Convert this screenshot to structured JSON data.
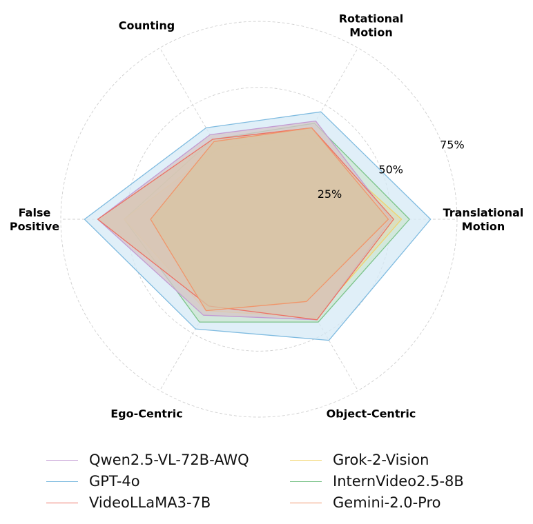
{
  "chart_data": {
    "type": "radar",
    "axes": [
      {
        "lines": [
          "Translational",
          "Motion"
        ]
      },
      {
        "lines": [
          "Rotational",
          "Motion"
        ]
      },
      {
        "lines": [
          "Counting"
        ]
      },
      {
        "lines": [
          "False",
          "Positive"
        ]
      },
      {
        "lines": [
          "Ego-Centric"
        ]
      },
      {
        "lines": [
          "Object-Centric"
        ]
      }
    ],
    "rmax": 75,
    "ticks": [
      25,
      50,
      75
    ],
    "tick_labels": [
      "25%",
      "50%",
      "75%"
    ],
    "series": [
      {
        "name": "GPT-4o",
        "color": "#7fbbe0",
        "values": [
          65,
          47,
          40,
          66,
          48,
          53
        ]
      },
      {
        "name": "InternVideo2.5-8B",
        "color": "#7cc48a",
        "values": [
          57,
          42,
          35,
          51,
          45,
          45
        ]
      },
      {
        "name": "Grok-2-Vision",
        "color": "#f2d36b",
        "values": [
          54,
          37,
          31,
          51,
          40,
          43
        ]
      },
      {
        "name": "Qwen2.5-VL-72B-AWQ",
        "color": "#c39bd3",
        "values": [
          50,
          43,
          37,
          61,
          42,
          44
        ]
      },
      {
        "name": "VideoLLaMA3-7B",
        "color": "#ec7063",
        "values": [
          51,
          40,
          35,
          61,
          38,
          44
        ]
      },
      {
        "name": "Gemini-2.0-Pro",
        "color": "#f0956a",
        "values": [
          49,
          40,
          34,
          41,
          40,
          36
        ]
      }
    ],
    "legend": [
      {
        "name": "Qwen2.5-VL-72B-AWQ",
        "color": "#c39bd3"
      },
      {
        "name": "GPT-4o",
        "color": "#7fbbe0"
      },
      {
        "name": "VideoLLaMA3-7B",
        "color": "#ec7063"
      },
      {
        "name": "Grok-2-Vision",
        "color": "#f2d36b"
      },
      {
        "name": "InternVideo2.5-8B",
        "color": "#7cc48a"
      },
      {
        "name": "Gemini-2.0-Pro",
        "color": "#f0956a"
      }
    ],
    "fill_colors": {
      "GPT-4o": "#d6e9f6",
      "InternVideo2.5-8B": "#cde6d3",
      "Grok-2-Vision": "#dcdcb8",
      "Qwen2.5-VL-72B-AWQ": "#d6c6c8",
      "VideoLLaMA3-7B": "#d9c5b2",
      "Gemini-2.0-Pro": "#d8c4a3"
    },
    "grid": true,
    "legend_position": "bottom"
  }
}
